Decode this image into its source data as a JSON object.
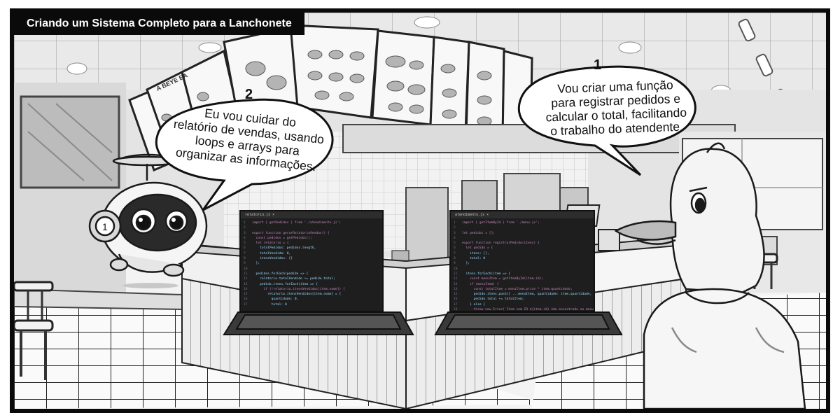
{
  "title": "Criando um Sistema Completo para a Lanchonete",
  "bubbles": {
    "duck": {
      "number": "1",
      "lines": [
        "Vou criar uma função",
        "para registrar pedidos e",
        "calcular o total, facilitando",
        "o trabalho do atendente."
      ]
    },
    "robot": {
      "number": "2",
      "lines": [
        "Eu vou cuidar do",
        "relatório de vendas, usando",
        "loops e arrays para",
        "organizar as informações."
      ]
    }
  },
  "laptops": {
    "left": {
      "tab": "relatorio.js ×",
      "code": [
        "import { getPedidos } from './atendimento.js';",
        "",
        "export function gerarRelatorioVendas() {",
        "  const pedidos = getPedidos();",
        "  let relatorio = {",
        "    totalPedidos: pedidos.length,",
        "    totalVendido: 0,",
        "    itensVendidos: {}",
        "  };",
        "",
        "  pedidos.forEach(pedido => {",
        "    relatorio.totalVendido += pedido.total;",
        "    pedido.itens.forEach(item => {",
        "      if (!relatorio.itensVendidos[item.nome]) {",
        "        relatorio.itensVendidos[item.nome] = {",
        "          quantidade: 0,",
        "          total: 0"
      ]
    },
    "right": {
      "tab": "atendimento.js ×",
      "code": [
        "import { getItemById } from './menu.js';",
        "",
        "let pedidos = [];",
        "",
        "export function registrarPedido(itens) {",
        "  let pedido = {",
        "    itens: [],",
        "    total: 0",
        "  };",
        "",
        "  itens.forEach(item => {",
        "    const menuItem = getItemById(item.id);",
        "    if (menuItem) {",
        "      const totalItem = menuItem.price * item.quantidade;",
        "      pedido.itens.push({ ...menuItem, quantidade: item.quantidade, total: totalItem });",
        "      pedido.total += totalItem;",
        "    } else {",
        "      throw new Error(`Item com ID ${item.id} não encontrado no menu.`);",
        "    }",
        "  });"
      ]
    }
  },
  "menu_board": {
    "sign": "A BEYE EA"
  },
  "colors": {
    "frame": "#0a0a0a",
    "title_text": "#ffffff",
    "editor_bg": "#1e1e1e",
    "keyword": "#c586c0",
    "function": "#dcdcaa",
    "identifier": "#9cdcfe"
  }
}
